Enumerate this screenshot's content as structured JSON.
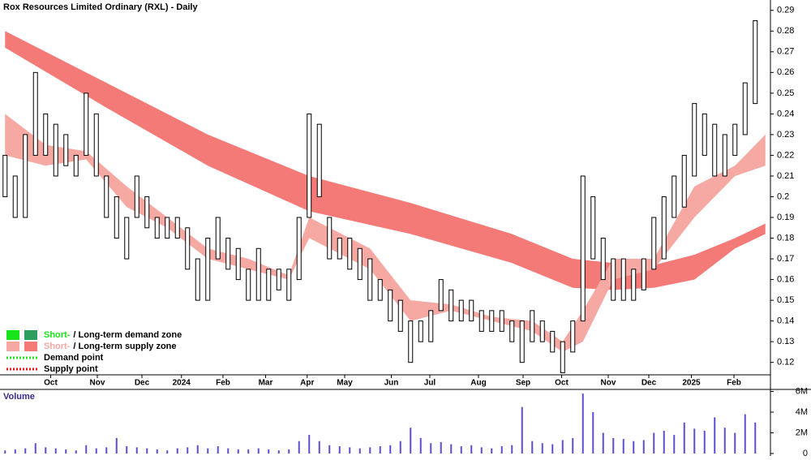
{
  "chart_data": {
    "type": "range-bar",
    "title": "Rox Resources Limited Ordinary (RXL) - Daily",
    "volume_label": "Volume",
    "price_color": "#000000",
    "volume_color": "#5a4fcf",
    "xlim": [
      -0.5,
      75.5
    ],
    "xticks": [
      {
        "value": 4.5,
        "label": "Oct"
      },
      {
        "value": 9.1,
        "label": "Nov"
      },
      {
        "value": 13.5,
        "label": "Dec"
      },
      {
        "value": 17.4,
        "label": "2024"
      },
      {
        "value": 21.5,
        "label": "Feb"
      },
      {
        "value": 25.7,
        "label": "Mar"
      },
      {
        "value": 29.8,
        "label": "Apr"
      },
      {
        "value": 33.5,
        "label": "May"
      },
      {
        "value": 38.1,
        "label": "Jun"
      },
      {
        "value": 41.9,
        "label": "Jul"
      },
      {
        "value": 46.7,
        "label": "Aug"
      },
      {
        "value": 51.1,
        "label": "Sep"
      },
      {
        "value": 54.9,
        "label": "Oct"
      },
      {
        "value": 59.5,
        "label": "Nov"
      },
      {
        "value": 63.5,
        "label": "Dec"
      },
      {
        "value": 67.7,
        "label": "2025"
      },
      {
        "value": 71.9,
        "label": "Feb"
      }
    ],
    "ylim": [
      0.114,
      0.295
    ],
    "yticks": [
      0.12,
      0.13,
      0.14,
      0.15,
      0.16,
      0.17,
      0.18,
      0.19,
      0.2,
      0.21,
      0.22,
      0.23,
      0.24,
      0.25,
      0.26,
      0.27,
      0.28,
      0.29
    ],
    "x": [
      0,
      1,
      2,
      3,
      4,
      5,
      6,
      7,
      8,
      9,
      10,
      11,
      12,
      13,
      14,
      15,
      16,
      17,
      18,
      19,
      20,
      21,
      22,
      23,
      24,
      25,
      26,
      27,
      28,
      29,
      30,
      31,
      32,
      33,
      34,
      35,
      36,
      37,
      38,
      39,
      40,
      41,
      42,
      43,
      44,
      45,
      46,
      47,
      48,
      49,
      50,
      51,
      52,
      53,
      54,
      55,
      56,
      57,
      58,
      59,
      60,
      61,
      62,
      63,
      64,
      65,
      66,
      67,
      68,
      69,
      70,
      71,
      72,
      73,
      74
    ],
    "high": [
      0.22,
      0.21,
      0.23,
      0.26,
      0.24,
      0.235,
      0.23,
      0.22,
      0.25,
      0.24,
      0.21,
      0.2,
      0.19,
      0.21,
      0.2,
      0.19,
      0.19,
      0.19,
      0.185,
      0.17,
      0.18,
      0.19,
      0.18,
      0.175,
      0.165,
      0.175,
      0.165,
      0.165,
      0.165,
      0.19,
      0.24,
      0.235,
      0.19,
      0.18,
      0.18,
      0.175,
      0.17,
      0.16,
      0.155,
      0.15,
      0.14,
      0.14,
      0.145,
      0.16,
      0.155,
      0.15,
      0.15,
      0.145,
      0.145,
      0.145,
      0.14,
      0.14,
      0.145,
      0.14,
      0.135,
      0.13,
      0.14,
      0.21,
      0.2,
      0.18,
      0.17,
      0.17,
      0.165,
      0.17,
      0.19,
      0.2,
      0.21,
      0.22,
      0.245,
      0.24,
      0.235,
      0.23,
      0.235,
      0.255,
      0.285
    ],
    "low": [
      0.2,
      0.19,
      0.19,
      0.22,
      0.22,
      0.21,
      0.215,
      0.21,
      0.22,
      0.21,
      0.19,
      0.18,
      0.17,
      0.19,
      0.185,
      0.18,
      0.18,
      0.18,
      0.165,
      0.15,
      0.15,
      0.17,
      0.165,
      0.16,
      0.15,
      0.15,
      0.15,
      0.155,
      0.15,
      0.16,
      0.19,
      0.2,
      0.17,
      0.17,
      0.165,
      0.16,
      0.15,
      0.15,
      0.14,
      0.135,
      0.12,
      0.13,
      0.13,
      0.145,
      0.14,
      0.14,
      0.14,
      0.135,
      0.135,
      0.135,
      0.13,
      0.12,
      0.13,
      0.13,
      0.125,
      0.115,
      0.125,
      0.14,
      0.17,
      0.16,
      0.15,
      0.15,
      0.15,
      0.155,
      0.165,
      0.17,
      0.19,
      0.195,
      0.21,
      0.22,
      0.21,
      0.21,
      0.22,
      0.23,
      0.245
    ],
    "volume_ylim": [
      0,
      6.2
    ],
    "volume_ticks": [
      {
        "value": 0,
        "label": "0"
      },
      {
        "value": 2,
        "label": "2M"
      },
      {
        "value": 4,
        "label": "4M"
      },
      {
        "value": 6,
        "label": "6M"
      }
    ],
    "volume": [
      0.3,
      0.4,
      0.5,
      1.0,
      0.6,
      0.5,
      0.4,
      0.3,
      0.8,
      0.5,
      0.6,
      1.5,
      0.7,
      0.6,
      0.5,
      0.4,
      0.3,
      0.5,
      0.6,
      0.8,
      0.5,
      0.7,
      0.5,
      0.4,
      0.4,
      0.5,
      0.4,
      0.3,
      0.4,
      1.2,
      1.8,
      1.2,
      0.8,
      0.7,
      0.6,
      0.5,
      0.6,
      0.7,
      0.8,
      1.2,
      2.5,
      1.5,
      1.0,
      1.1,
      0.9,
      0.7,
      0.8,
      0.6,
      0.5,
      0.7,
      0.8,
      4.5,
      1.2,
      1.0,
      0.9,
      1.3,
      1.5,
      5.8,
      4.0,
      2.0,
      1.5,
      1.4,
      1.2,
      1.3,
      2.0,
      2.2,
      1.8,
      3.0,
      2.4,
      2.2,
      3.5,
      2.5,
      2.0,
      3.8,
      3.0
    ],
    "bands": [
      {
        "name": "Long-term zone",
        "color": "#f47a78",
        "x": [
          0,
          10,
          20,
          30,
          40,
          50,
          56,
          60,
          64,
          68,
          72,
          75
        ],
        "upper": [
          0.28,
          0.255,
          0.23,
          0.21,
          0.197,
          0.182,
          0.17,
          0.168,
          0.167,
          0.172,
          0.18,
          0.187
        ],
        "lower": [
          0.272,
          0.243,
          0.215,
          0.193,
          0.182,
          0.168,
          0.156,
          0.155,
          0.156,
          0.16,
          0.175,
          0.182
        ]
      },
      {
        "name": "Short-term zone",
        "color": "#f6a9a2",
        "x": [
          0,
          4,
          8,
          12,
          16,
          20,
          24,
          28,
          30,
          32,
          36,
          40,
          44,
          48,
          52,
          55,
          57,
          60,
          64,
          68,
          72,
          75
        ],
        "upper": [
          0.24,
          0.225,
          0.222,
          0.205,
          0.19,
          0.175,
          0.17,
          0.162,
          0.19,
          0.185,
          0.175,
          0.15,
          0.148,
          0.142,
          0.14,
          0.13,
          0.145,
          0.17,
          0.17,
          0.205,
          0.215,
          0.23
        ],
        "lower": [
          0.22,
          0.215,
          0.218,
          0.195,
          0.185,
          0.17,
          0.165,
          0.16,
          0.18,
          0.175,
          0.165,
          0.14,
          0.145,
          0.14,
          0.135,
          0.125,
          0.13,
          0.16,
          0.165,
          0.19,
          0.21,
          0.215
        ]
      }
    ],
    "legend": [
      {
        "short": "Short-",
        "rest": "/ Long-term demand zone",
        "colors": [
          "#19e319",
          "#2e9e5e"
        ],
        "text_color": "#19e319"
      },
      {
        "short": "Short-",
        "rest": "/ Long-term supply zone",
        "colors": [
          "#f6a9a2",
          "#f47a78"
        ],
        "text_color": "#f6a9a2"
      },
      {
        "short": "Demand point",
        "dotted": "#19e319"
      },
      {
        "short": "Supply point",
        "dotted": "#e01010"
      }
    ]
  }
}
